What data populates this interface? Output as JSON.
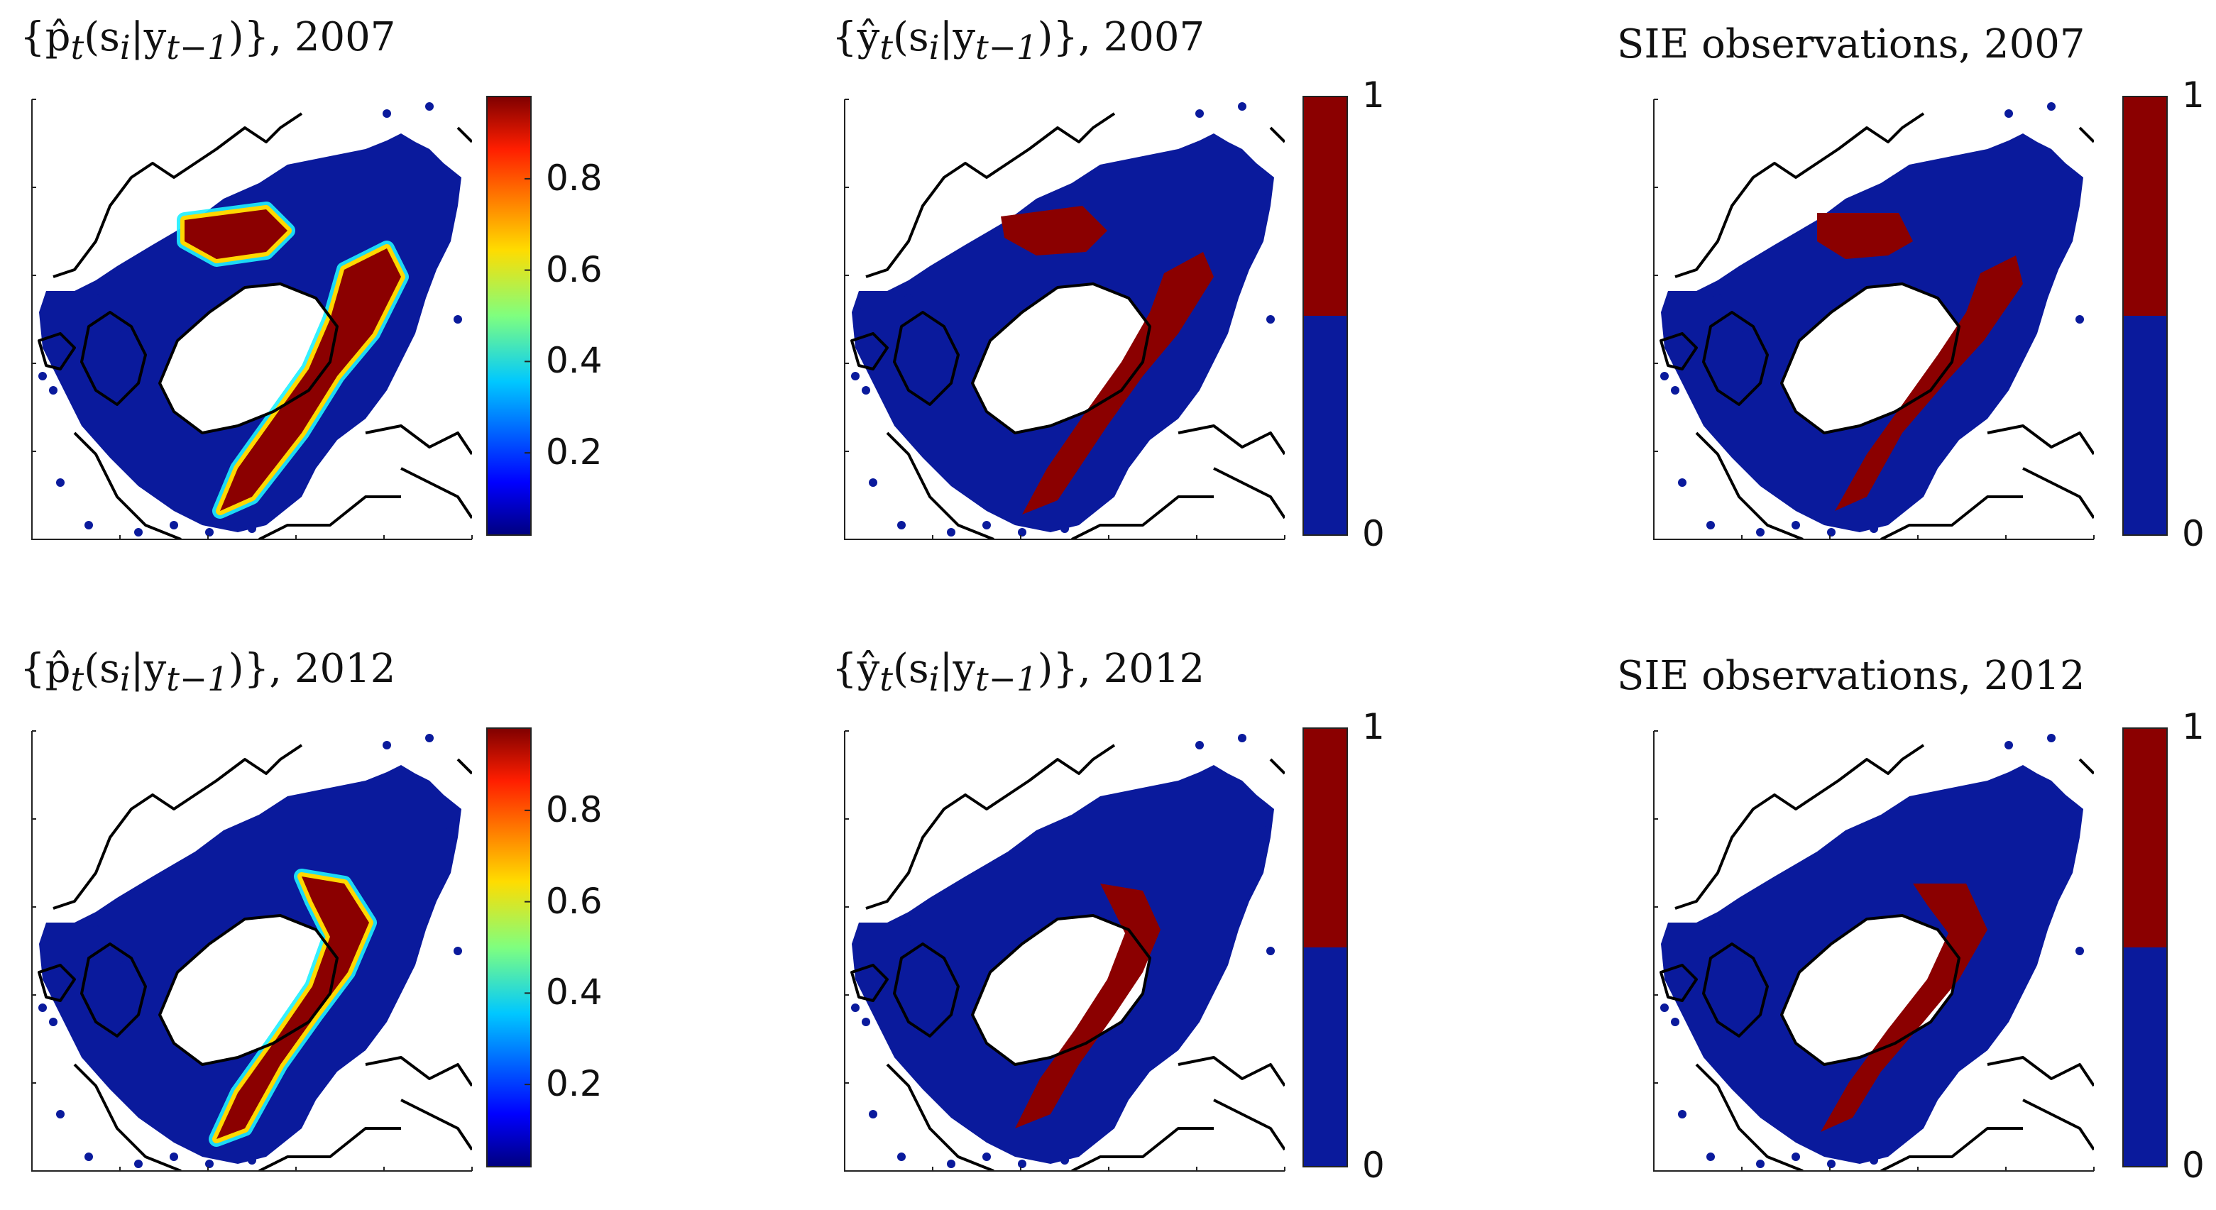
{
  "figure": {
    "rows": [
      {
        "year": "2007",
        "panels": [
          {
            "kind": "probability",
            "title_prefix": "{p̂",
            "title_mid": "(s",
            "title_suffix": "|y",
            "title_end": ")}, ",
            "title_year": "2007",
            "colorbar": {
              "type": "continuous",
              "ticks": [
                "0.8",
                "0.6",
                "0.4",
                "0.2"
              ]
            }
          },
          {
            "kind": "prediction",
            "title_prefix": "{ŷ",
            "title_mid": "(s",
            "title_suffix": "|y",
            "title_end": ")}, ",
            "title_year": "2007",
            "colorbar": {
              "type": "binary",
              "ticks": [
                "1",
                "0"
              ]
            }
          },
          {
            "kind": "observation",
            "title_text": "SIE observations, 2007",
            "colorbar": {
              "type": "binary",
              "ticks": [
                "1",
                "0"
              ]
            }
          }
        ]
      },
      {
        "year": "2012",
        "panels": [
          {
            "kind": "probability",
            "title_prefix": "{p̂",
            "title_mid": "(s",
            "title_suffix": "|y",
            "title_end": ")}, ",
            "title_year": "2012",
            "colorbar": {
              "type": "continuous",
              "ticks": [
                "0.8",
                "0.6",
                "0.4",
                "0.2"
              ]
            }
          },
          {
            "kind": "prediction",
            "title_prefix": "{ŷ",
            "title_mid": "(s",
            "title_suffix": "|y",
            "title_end": ")}, ",
            "title_year": "2012",
            "colorbar": {
              "type": "binary",
              "ticks": [
                "1",
                "0"
              ]
            }
          },
          {
            "kind": "observation",
            "title_text": "SIE observations, 2012",
            "colorbar": {
              "type": "binary",
              "ticks": [
                "1",
                "0"
              ]
            }
          }
        ]
      }
    ]
  },
  "chart_data": [
    {
      "type": "heatmap",
      "title": "{p̂_t(s_i|y_{t-1})}, 2007",
      "colorbar_range": [
        0,
        1
      ],
      "colorbar_ticks": [
        0.2,
        0.4,
        0.6,
        0.8
      ],
      "colormap": "jet"
    },
    {
      "type": "heatmap",
      "title": "{ŷ_t(s_i|y_{t-1})}, 2007",
      "colorbar_range": [
        0,
        1
      ],
      "colorbar_ticks": [
        0,
        1
      ],
      "colormap": "binary blue/red"
    },
    {
      "type": "heatmap",
      "title": "SIE observations, 2007",
      "colorbar_range": [
        0,
        1
      ],
      "colorbar_ticks": [
        0,
        1
      ],
      "colormap": "binary blue/red"
    },
    {
      "type": "heatmap",
      "title": "{p̂_t(s_i|y_{t-1})}, 2012",
      "colorbar_range": [
        0,
        1
      ],
      "colorbar_ticks": [
        0.2,
        0.4,
        0.6,
        0.8
      ],
      "colormap": "jet"
    },
    {
      "type": "heatmap",
      "title": "{ŷ_t(s_i|y_{t-1})}, 2012",
      "colorbar_range": [
        0,
        1
      ],
      "colorbar_ticks": [
        0,
        1
      ],
      "colormap": "binary blue/red"
    },
    {
      "type": "heatmap",
      "title": "SIE observations, 2012",
      "colorbar_range": [
        0,
        1
      ],
      "colorbar_ticks": [
        0,
        1
      ],
      "colormap": "binary blue/red"
    }
  ],
  "colors": {
    "ice_blue": "#0a1a9c",
    "ice_red": "#8b0000",
    "coast": "#000000"
  }
}
